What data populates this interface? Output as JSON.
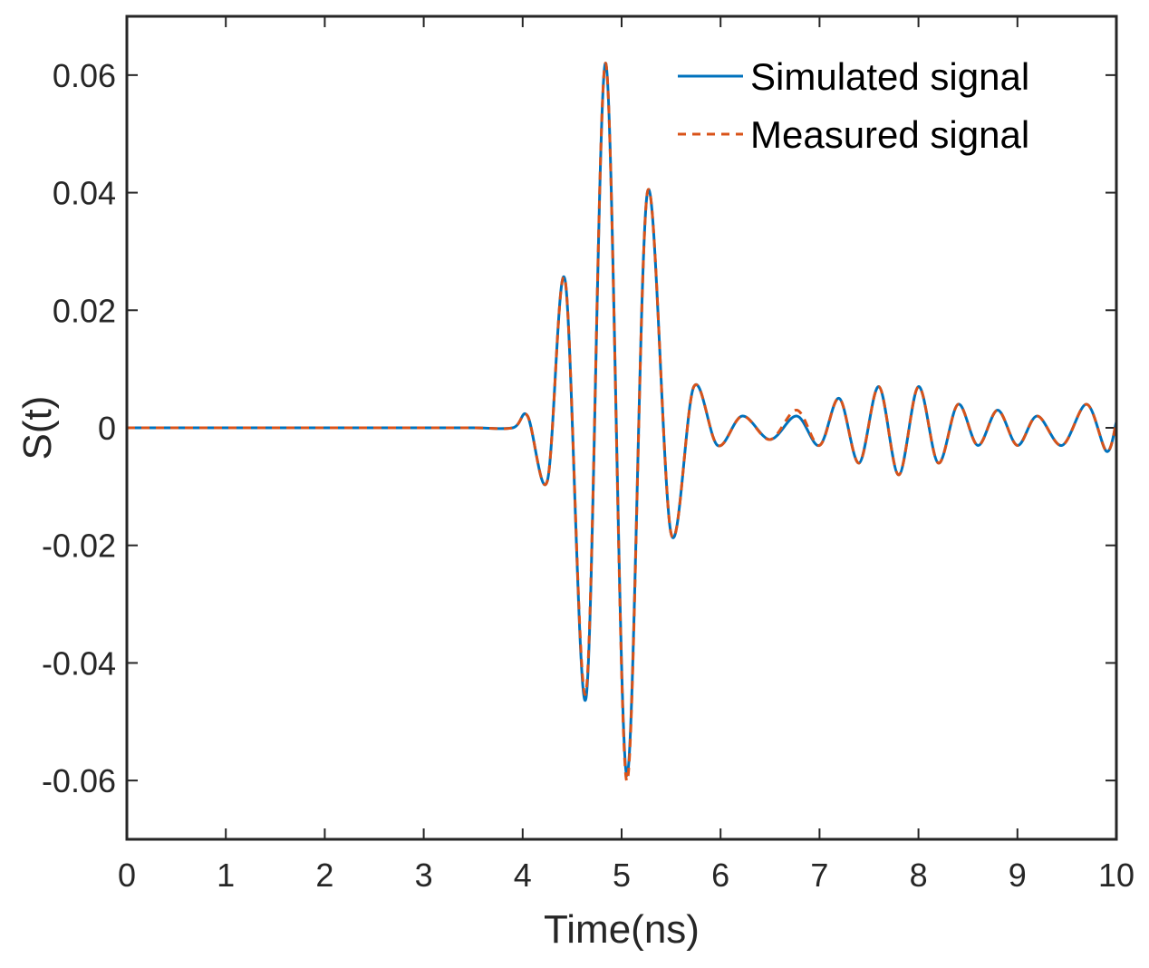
{
  "chart_data": {
    "type": "line",
    "title": "",
    "xlabel": "Time(ns)",
    "ylabel": "S(t)",
    "xlim": [
      0,
      10
    ],
    "ylim": [
      -0.07,
      0.07
    ],
    "xticks": [
      0,
      1,
      2,
      3,
      4,
      5,
      6,
      7,
      8,
      9,
      10
    ],
    "xtick_labels": [
      "0",
      "1",
      "2",
      "3",
      "4",
      "5",
      "6",
      "7",
      "8",
      "9",
      "10"
    ],
    "yticks": [
      0.06,
      0.04,
      0.02,
      0,
      -0.02,
      -0.04,
      -0.06
    ],
    "ytick_labels": [
      "0.06",
      "0.04",
      "0.02",
      "0",
      "-0.02",
      "-0.04",
      "-0.06"
    ],
    "grid": false,
    "legend_position": "top-right",
    "series": [
      {
        "name": "Simulated signal",
        "color": "#0072BD",
        "style": "solid",
        "x": [
          0,
          0.5,
          1,
          1.5,
          2,
          2.5,
          3,
          3.5,
          3.9,
          4.05,
          4.25,
          4.43,
          4.64,
          4.84,
          5.05,
          5.26,
          5.5,
          5.73,
          5.97,
          6.22,
          6.5,
          6.77,
          7.0,
          7.2,
          7.4,
          7.6,
          7.8,
          8.0,
          8.2,
          8.4,
          8.6,
          8.8,
          9.0,
          9.2,
          9.45,
          9.7,
          9.9,
          10.0
        ],
        "y": [
          0,
          0,
          0,
          0,
          0,
          0,
          0,
          0,
          0,
          0.002,
          -0.009,
          0.025,
          -0.046,
          0.062,
          -0.059,
          0.04,
          -0.018,
          0.007,
          -0.003,
          0.002,
          -0.002,
          0.002,
          -0.003,
          0.005,
          -0.006,
          0.007,
          -0.008,
          0.007,
          -0.006,
          0.004,
          -0.003,
          0.003,
          -0.003,
          0.002,
          -0.003,
          0.004,
          -0.004,
          0.001
        ]
      },
      {
        "name": "Measured signal",
        "color": "#D95319",
        "style": "dashed",
        "x": [
          0,
          0.5,
          1,
          1.5,
          2,
          2.5,
          3,
          3.5,
          3.9,
          4.05,
          4.25,
          4.43,
          4.64,
          4.84,
          5.05,
          5.26,
          5.5,
          5.73,
          5.97,
          6.22,
          6.5,
          6.77,
          7.0,
          7.2,
          7.4,
          7.6,
          7.8,
          8.0,
          8.2,
          8.4,
          8.6,
          8.8,
          9.0,
          9.2,
          9.45,
          9.7,
          9.9,
          10.0
        ],
        "y": [
          0,
          0,
          0,
          0,
          0,
          0,
          0,
          0,
          0,
          0.002,
          -0.009,
          0.025,
          -0.045,
          0.062,
          -0.06,
          0.04,
          -0.018,
          0.007,
          -0.003,
          0.002,
          -0.002,
          0.003,
          -0.003,
          0.005,
          -0.006,
          0.007,
          -0.008,
          0.007,
          -0.006,
          0.004,
          -0.003,
          0.003,
          -0.003,
          0.002,
          -0.003,
          0.004,
          -0.004,
          0.001
        ]
      }
    ]
  }
}
